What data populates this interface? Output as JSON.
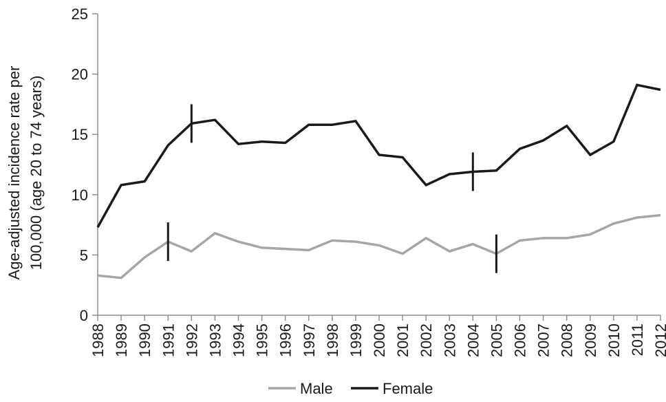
{
  "chart_data": {
    "type": "line",
    "title": "",
    "xlabel": "",
    "ylabel_lines": [
      "Age-adjusted incidence rate per",
      "100,000 (age 20 to 74 years)"
    ],
    "x": [
      "1988",
      "1989",
      "1990",
      "1991",
      "1992",
      "1993",
      "1994",
      "1995",
      "1996",
      "1997",
      "1998",
      "1999",
      "2000",
      "2001",
      "2002",
      "2003",
      "2004",
      "2005",
      "2006",
      "2007",
      "2008",
      "2009",
      "2010",
      "2011",
      "2012"
    ],
    "ylim": [
      0,
      25
    ],
    "yticks": [
      "0",
      "5",
      "10",
      "15",
      "20",
      "25"
    ],
    "grid": false,
    "legend_position": "bottom",
    "series": [
      {
        "name": "Male",
        "color": "#a6a6a6",
        "values": [
          3.3,
          3.1,
          4.8,
          6.1,
          5.3,
          6.8,
          6.1,
          5.6,
          5.5,
          5.4,
          6.2,
          6.1,
          5.8,
          5.1,
          6.4,
          5.3,
          5.9,
          5.1,
          6.2,
          6.4,
          6.4,
          6.7,
          7.6,
          8.1,
          8.3
        ],
        "joinpoints": [
          "1991",
          "2005"
        ]
      },
      {
        "name": "Female",
        "color": "#1a1a1a",
        "values": [
          7.3,
          10.8,
          11.1,
          14.1,
          15.9,
          16.2,
          14.2,
          14.4,
          14.3,
          15.8,
          15.8,
          16.1,
          13.3,
          13.1,
          10.8,
          11.7,
          11.9,
          12.0,
          13.8,
          14.5,
          15.7,
          13.3,
          14.4,
          19.1,
          18.7
        ],
        "joinpoints": [
          "1992",
          "2004"
        ]
      }
    ]
  }
}
